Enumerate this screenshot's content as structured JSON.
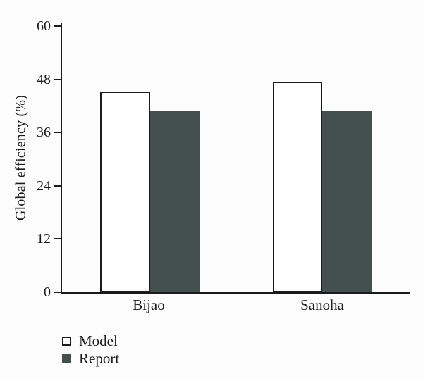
{
  "chart_data": {
    "type": "bar",
    "title": "",
    "ylabel": "Global efficiency (%)",
    "xlabel": "",
    "categories": [
      "Bijao",
      "Sanoha"
    ],
    "series": [
      {
        "name": "Model",
        "values": [
          45.3,
          47.4
        ],
        "fill": "#ffffff",
        "outlined": true
      },
      {
        "name": "Report",
        "values": [
          40.9,
          40.8
        ],
        "fill": "#44504f",
        "outlined": false
      }
    ],
    "ylim": [
      0,
      60
    ],
    "yticks": [
      0,
      12,
      24,
      36,
      48,
      60
    ],
    "grid": false,
    "legend_position": "bottom-left"
  },
  "colors": {
    "axis": "#1b1b1b",
    "text": "#1b1b1b",
    "model_fill": "#ffffff",
    "report_fill": "#44504f",
    "background": "#fdfdfd"
  }
}
